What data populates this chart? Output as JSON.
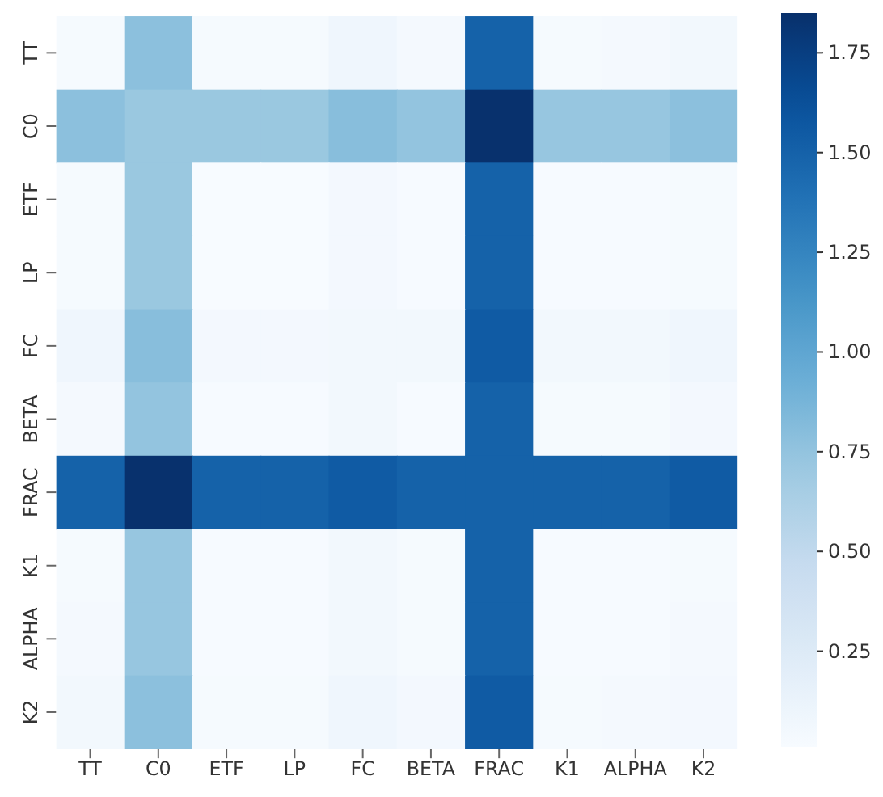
{
  "chart_data": {
    "type": "heatmap",
    "categories": [
      "TT",
      "C0",
      "ETF",
      "LP",
      "FC",
      "BETA",
      "FRAC",
      "K1",
      "ALPHA",
      "K2"
    ],
    "y_categories": [
      "TT",
      "C0",
      "ETF",
      "LP",
      "FC",
      "BETA",
      "FRAC",
      "K1",
      "ALPHA",
      "K2"
    ],
    "cells": [
      [
        0.03,
        0.78,
        0.03,
        0.03,
        0.08,
        0.04,
        1.5,
        0.03,
        0.04,
        0.06
      ],
      [
        0.78,
        0.72,
        0.72,
        0.72,
        0.8,
        0.75,
        1.84,
        0.73,
        0.73,
        0.78
      ],
      [
        0.03,
        0.72,
        0.01,
        0.01,
        0.05,
        0.02,
        1.5,
        0.02,
        0.02,
        0.03
      ],
      [
        0.03,
        0.72,
        0.01,
        0.01,
        0.05,
        0.02,
        1.5,
        0.02,
        0.02,
        0.03
      ],
      [
        0.08,
        0.8,
        0.05,
        0.05,
        0.06,
        0.06,
        1.55,
        0.06,
        0.06,
        0.08
      ],
      [
        0.04,
        0.75,
        0.02,
        0.02,
        0.06,
        0.02,
        1.5,
        0.03,
        0.03,
        0.05
      ],
      [
        1.5,
        1.84,
        1.5,
        1.5,
        1.55,
        1.5,
        1.5,
        1.5,
        1.5,
        1.55
      ],
      [
        0.03,
        0.73,
        0.02,
        0.02,
        0.06,
        0.03,
        1.5,
        0.02,
        0.02,
        0.03
      ],
      [
        0.04,
        0.73,
        0.02,
        0.02,
        0.06,
        0.03,
        1.5,
        0.02,
        0.02,
        0.04
      ],
      [
        0.06,
        0.78,
        0.03,
        0.03,
        0.08,
        0.05,
        1.55,
        0.03,
        0.04,
        0.05
      ]
    ],
    "clim": [
      0.01,
      1.85
    ],
    "cticks": [
      {
        "value": 0.25,
        "label": "0.25"
      },
      {
        "value": 0.5,
        "label": "0.50"
      },
      {
        "value": 0.75,
        "label": "0.75"
      },
      {
        "value": 1.0,
        "label": "1.00"
      },
      {
        "value": 1.25,
        "label": "1.25"
      },
      {
        "value": 1.5,
        "label": "1.50"
      },
      {
        "value": 1.75,
        "label": "1.75"
      }
    ]
  }
}
